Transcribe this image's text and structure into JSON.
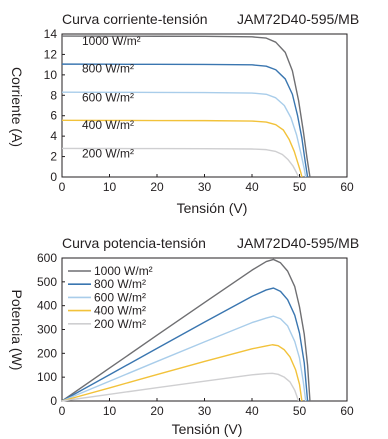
{
  "colors": {
    "c1000": "#6f6f72",
    "c800": "#3a76b0",
    "c600": "#a9cdea",
    "c400": "#f2c23a",
    "c200": "#cfcfd1",
    "frame": "#231f20"
  },
  "chart_data": [
    {
      "type": "line",
      "title": "Curva corriente-tensión",
      "subtitle": "JAM72D40-595/MB",
      "xlabel": "Tensión (V)",
      "ylabel": "Corriente (A)",
      "xlim": [
        0,
        60
      ],
      "ylim": [
        0,
        14
      ],
      "xticks": [
        0,
        10,
        20,
        30,
        40,
        50,
        60
      ],
      "yticks": [
        0,
        2,
        4,
        6,
        8,
        10,
        12,
        14
      ],
      "legend_position": "inline-left",
      "series": [
        {
          "name": "1000 W/m²",
          "color_key": "c1000",
          "label_value": 13.3,
          "points": [
            [
              0,
              13.8
            ],
            [
              10,
              13.79
            ],
            [
              20,
              13.78
            ],
            [
              30,
              13.77
            ],
            [
              40,
              13.72
            ],
            [
              43,
              13.6
            ],
            [
              45,
              13.2
            ],
            [
              47,
              12.2
            ],
            [
              48.5,
              10.4
            ],
            [
              49.8,
              7.5
            ],
            [
              50.8,
              4.5
            ],
            [
              51.6,
              1.8
            ],
            [
              52.2,
              0
            ]
          ]
        },
        {
          "name": "800 W/m²",
          "color_key": "c800",
          "label_value": 10.6,
          "points": [
            [
              0,
              11.05
            ],
            [
              10,
              11.04
            ],
            [
              20,
              11.03
            ],
            [
              30,
              11.02
            ],
            [
              40,
              10.98
            ],
            [
              43,
              10.85
            ],
            [
              45,
              10.5
            ],
            [
              47,
              9.6
            ],
            [
              48.5,
              8.1
            ],
            [
              49.6,
              6
            ],
            [
              50.5,
              3.8
            ],
            [
              51.2,
              1.5
            ],
            [
              51.7,
              0
            ]
          ]
        },
        {
          "name": "600 W/m²",
          "color_key": "c600",
          "label_value": 7.8,
          "points": [
            [
              0,
              8.3
            ],
            [
              10,
              8.29
            ],
            [
              20,
              8.28
            ],
            [
              30,
              8.27
            ],
            [
              40,
              8.22
            ],
            [
              43,
              8.1
            ],
            [
              45,
              7.75
            ],
            [
              46.8,
              7
            ],
            [
              48.2,
              5.8
            ],
            [
              49.4,
              4.1
            ],
            [
              50.3,
              2.3
            ],
            [
              51,
              0.8
            ],
            [
              51.3,
              0
            ]
          ]
        },
        {
          "name": "400 W/m²",
          "color_key": "c400",
          "label_value": 5.1,
          "points": [
            [
              0,
              5.55
            ],
            [
              10,
              5.54
            ],
            [
              20,
              5.53
            ],
            [
              30,
              5.52
            ],
            [
              40,
              5.48
            ],
            [
              43,
              5.38
            ],
            [
              45,
              5.12
            ],
            [
              46.6,
              4.6
            ],
            [
              47.8,
              3.7
            ],
            [
              48.9,
              2.5
            ],
            [
              49.7,
              1.3
            ],
            [
              50.3,
              0.4
            ],
            [
              50.5,
              0
            ]
          ]
        },
        {
          "name": "200 W/m²",
          "color_key": "c200",
          "label_value": 2.3,
          "points": [
            [
              0,
              2.8
            ],
            [
              10,
              2.79
            ],
            [
              20,
              2.78
            ],
            [
              30,
              2.77
            ],
            [
              40,
              2.74
            ],
            [
              43,
              2.68
            ],
            [
              45,
              2.5
            ],
            [
              46.4,
              2.2
            ],
            [
              47.6,
              1.7
            ],
            [
              48.6,
              1.1
            ],
            [
              49.3,
              0.5
            ],
            [
              49.8,
              0
            ]
          ]
        }
      ]
    },
    {
      "type": "line",
      "title": "Curva potencia-tensión",
      "subtitle": "JAM72D40-595/MB",
      "xlabel": "Tensión (V)",
      "ylabel": "Potencia (W)",
      "xlim": [
        0,
        60
      ],
      "ylim": [
        0,
        600
      ],
      "xticks": [
        0,
        10,
        20,
        30,
        40,
        50,
        60
      ],
      "yticks": [
        0,
        100,
        200,
        300,
        400,
        500,
        600
      ],
      "legend_position": "top-left",
      "series": [
        {
          "name": "1000 W/m²",
          "color_key": "c1000",
          "points": [
            [
              0,
              0
            ],
            [
              10,
              138
            ],
            [
              20,
              276
            ],
            [
              30,
              413
            ],
            [
              40,
              549
            ],
            [
              43,
              585
            ],
            [
              44.5,
              594
            ],
            [
              46,
              580
            ],
            [
              47.5,
              545
            ],
            [
              49,
              480
            ],
            [
              50,
              395
            ],
            [
              51,
              280
            ],
            [
              51.7,
              150
            ],
            [
              52.2,
              0
            ]
          ]
        },
        {
          "name": "800 W/m²",
          "color_key": "c800",
          "points": [
            [
              0,
              0
            ],
            [
              10,
              110
            ],
            [
              20,
              221
            ],
            [
              30,
              331
            ],
            [
              40,
              439
            ],
            [
              43,
              466
            ],
            [
              44.5,
              474
            ],
            [
              46,
              460
            ],
            [
              47.5,
              425
            ],
            [
              49,
              360
            ],
            [
              50,
              285
            ],
            [
              51,
              160
            ],
            [
              51.7,
              0
            ]
          ]
        },
        {
          "name": "600 W/m²",
          "color_key": "c600",
          "points": [
            [
              0,
              0
            ],
            [
              10,
              83
            ],
            [
              20,
              166
            ],
            [
              30,
              248
            ],
            [
              40,
              329
            ],
            [
              43,
              348
            ],
            [
              44.5,
              356
            ],
            [
              46,
              345
            ],
            [
              47.5,
              315
            ],
            [
              49,
              250
            ],
            [
              50,
              180
            ],
            [
              50.8,
              80
            ],
            [
              51.3,
              0
            ]
          ]
        },
        {
          "name": "400 W/m²",
          "color_key": "c400",
          "points": [
            [
              0,
              0
            ],
            [
              10,
              55
            ],
            [
              20,
              111
            ],
            [
              30,
              166
            ],
            [
              40,
              219
            ],
            [
              43,
              231
            ],
            [
              44.3,
              236
            ],
            [
              45.5,
              232
            ],
            [
              46.8,
              215
            ],
            [
              48,
              185
            ],
            [
              49.2,
              130
            ],
            [
              50,
              70
            ],
            [
              50.5,
              0
            ]
          ]
        },
        {
          "name": "200 W/m²",
          "color_key": "c200",
          "points": [
            [
              0,
              0
            ],
            [
              10,
              28
            ],
            [
              20,
              56
            ],
            [
              30,
              83
            ],
            [
              40,
              110
            ],
            [
              43,
              115
            ],
            [
              44.3,
              116
            ],
            [
              45.5,
              112
            ],
            [
              46.8,
              100
            ],
            [
              48,
              80
            ],
            [
              49,
              45
            ],
            [
              49.8,
              0
            ]
          ]
        }
      ]
    }
  ]
}
